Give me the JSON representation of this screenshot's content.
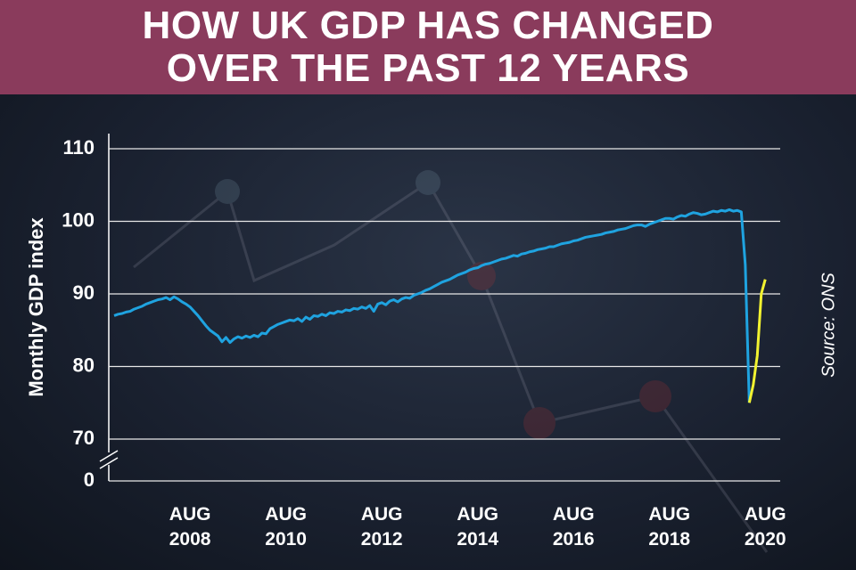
{
  "chart_data": {
    "type": "line",
    "title": "HOW UK GDP HAS CHANGED OVER THE PAST 12 YEARS",
    "y_label": "Monthly GDP index",
    "source": "Source: ONS",
    "categories": [
      null,
      null,
      null,
      null,
      null,
      null,
      null,
      null,
      null,
      null,
      null,
      null,
      null,
      null,
      null,
      null,
      null,
      null,
      null,
      "AUG 2008",
      null,
      null,
      null,
      null,
      null,
      null,
      null,
      null,
      null,
      null,
      null,
      null,
      null,
      null,
      null,
      null,
      null,
      null,
      null,
      null,
      null,
      null,
      null,
      "AUG 2010",
      null,
      null,
      null,
      null,
      null,
      null,
      null,
      null,
      null,
      null,
      null,
      null,
      null,
      null,
      null,
      null,
      null,
      null,
      null,
      null,
      null,
      null,
      null,
      "AUG 2012",
      null,
      null,
      null,
      null,
      null,
      null,
      null,
      null,
      null,
      null,
      null,
      null,
      null,
      null,
      null,
      null,
      null,
      null,
      null,
      null,
      null,
      null,
      null,
      "AUG 2014",
      null,
      null,
      null,
      null,
      null,
      null,
      null,
      null,
      null,
      null,
      null,
      null,
      null,
      null,
      null,
      null,
      null,
      null,
      null,
      null,
      null,
      null,
      null,
      "AUG 2016",
      null,
      null,
      null,
      null,
      null,
      null,
      null,
      null,
      null,
      null,
      null,
      null,
      null,
      null,
      null,
      null,
      null,
      null,
      null,
      null,
      null,
      null,
      null,
      "AUG 2018",
      null,
      null,
      null,
      null,
      null,
      null,
      null,
      null,
      null,
      null,
      null,
      null,
      null,
      null,
      null,
      null,
      null,
      null,
      null,
      null,
      null,
      null,
      null,
      "AUG 2020"
    ],
    "series": [
      {
        "color": "#1fa3e0",
        "values": [
          87,
          87.2,
          87.3,
          87.5,
          87.6,
          87.9,
          88.1,
          88.3,
          88.6,
          88.8,
          89.0,
          89.2,
          89.3,
          89.5,
          89.2,
          89.6,
          89.3,
          88.9,
          88.6,
          88.2,
          87.6,
          87.0,
          86.3,
          85.6,
          85.0,
          84.6,
          84.2,
          83.4,
          84.0,
          83.3,
          83.8,
          84.1,
          83.9,
          84.2,
          84.0,
          84.3,
          84.1,
          84.6,
          84.5,
          85.2,
          85.5,
          85.8,
          86.0,
          86.2,
          86.4,
          86.3,
          86.6,
          86.2,
          86.8,
          86.5,
          87.0,
          86.9,
          87.2,
          87.0,
          87.4,
          87.3,
          87.6,
          87.5,
          87.8,
          87.7,
          88.0,
          87.9,
          88.2,
          88.0,
          88.4,
          87.6,
          88.6,
          88.8,
          88.5,
          89.0,
          89.2,
          88.9,
          89.3,
          89.5,
          89.4,
          89.8,
          90.0,
          90.2,
          90.5,
          90.7,
          91.0,
          91.3,
          91.6,
          91.8,
          92.0,
          92.3,
          92.6,
          92.8,
          93.0,
          93.3,
          93.5,
          93.6,
          93.9,
          94.1,
          94.2,
          94.4,
          94.6,
          94.8,
          94.9,
          95.1,
          95.3,
          95.2,
          95.5,
          95.6,
          95.8,
          95.9,
          96.1,
          96.2,
          96.3,
          96.5,
          96.5,
          96.7,
          96.9,
          97.0,
          97.1,
          97.3,
          97.4,
          97.6,
          97.8,
          97.9,
          98.0,
          98.1,
          98.2,
          98.4,
          98.5,
          98.6,
          98.8,
          98.9,
          99.0,
          99.2,
          99.4,
          99.5,
          99.5,
          99.3,
          99.6,
          99.8,
          100.0,
          100.2,
          100.4,
          100.4,
          100.3,
          100.6,
          100.8,
          100.7,
          101.0,
          101.2,
          101.1,
          100.9,
          101.0,
          101.2,
          101.4,
          101.3,
          101.5,
          101.4,
          101.6,
          101.4,
          101.5,
          101.3,
          94.0,
          75.0,
          null,
          null,
          null,
          null
        ]
      },
      {
        "color": "#f2f230",
        "values": [
          null,
          null,
          null,
          null,
          null,
          null,
          null,
          null,
          null,
          null,
          null,
          null,
          null,
          null,
          null,
          null,
          null,
          null,
          null,
          null,
          null,
          null,
          null,
          null,
          null,
          null,
          null,
          null,
          null,
          null,
          null,
          null,
          null,
          null,
          null,
          null,
          null,
          null,
          null,
          null,
          null,
          null,
          null,
          null,
          null,
          null,
          null,
          null,
          null,
          null,
          null,
          null,
          null,
          null,
          null,
          null,
          null,
          null,
          null,
          null,
          null,
          null,
          null,
          null,
          null,
          null,
          null,
          null,
          null,
          null,
          null,
          null,
          null,
          null,
          null,
          null,
          null,
          null,
          null,
          null,
          null,
          null,
          null,
          null,
          null,
          null,
          null,
          null,
          null,
          null,
          null,
          null,
          null,
          null,
          null,
          null,
          null,
          null,
          null,
          null,
          null,
          null,
          null,
          null,
          null,
          null,
          null,
          null,
          null,
          null,
          null,
          null,
          null,
          null,
          null,
          null,
          null,
          null,
          null,
          null,
          null,
          null,
          null,
          null,
          null,
          null,
          null,
          null,
          null,
          null,
          null,
          null,
          null,
          null,
          null,
          null,
          null,
          null,
          null,
          null,
          null,
          null,
          null,
          null,
          null,
          null,
          null,
          null,
          null,
          null,
          null,
          null,
          null,
          null,
          null,
          null,
          null,
          null,
          null,
          75.0,
          77.5,
          81.5,
          90.0,
          92.0
        ]
      }
    ],
    "ylim": [
      0,
      110
    ],
    "yticks": [
      0,
      70,
      80,
      90,
      100,
      110
    ],
    "y_axis_break": [
      0,
      70
    ],
    "grid": true
  }
}
